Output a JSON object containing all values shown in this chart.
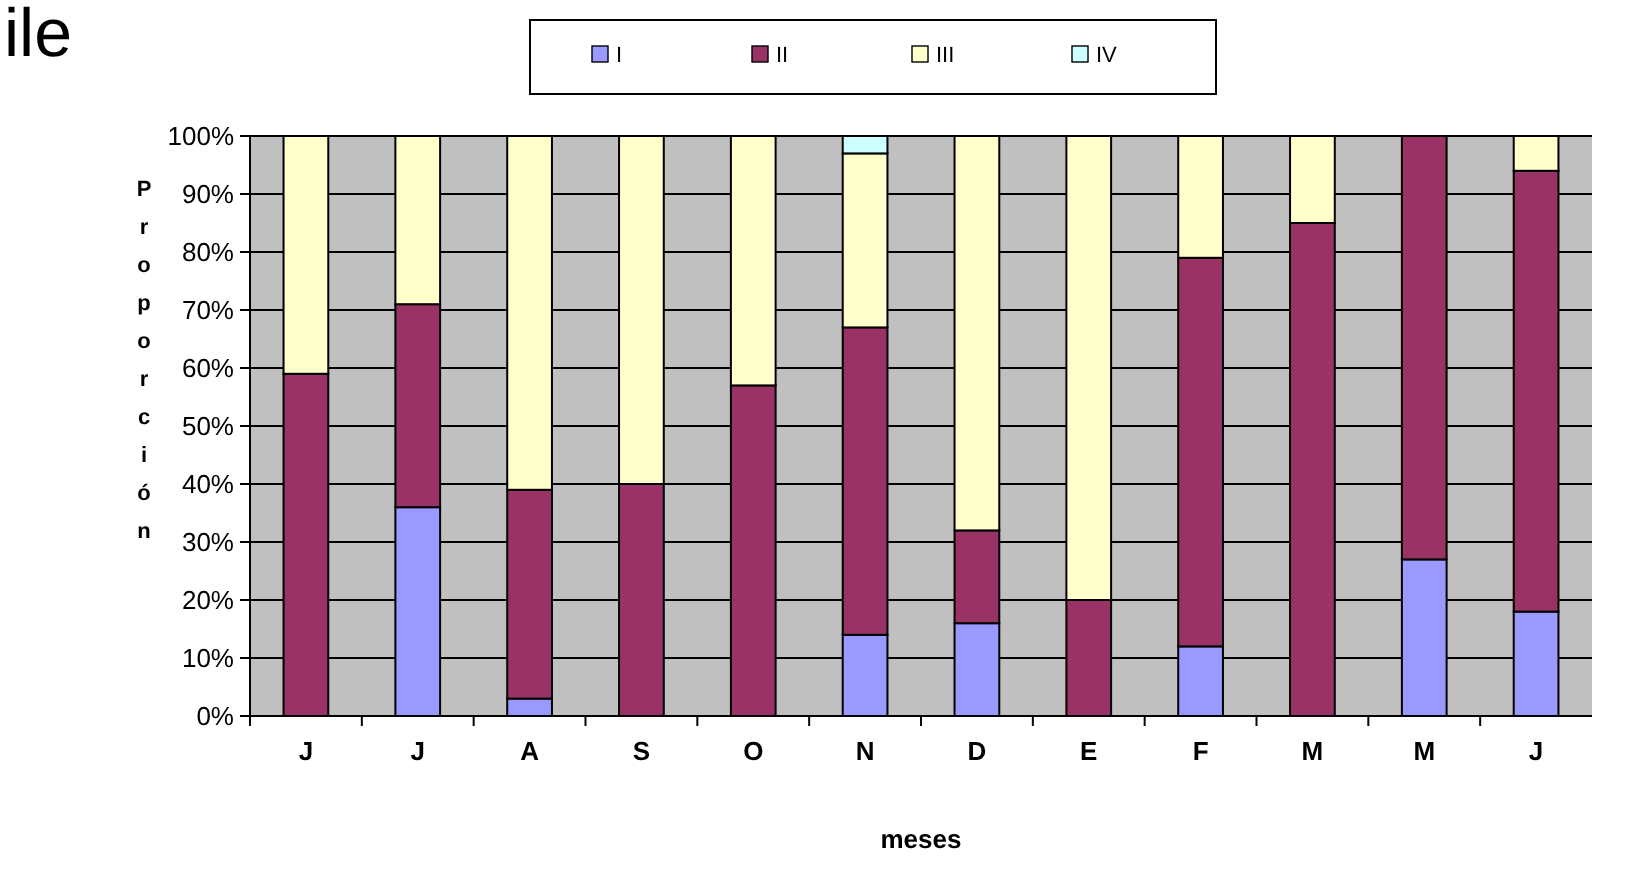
{
  "chart_data": {
    "type": "bar",
    "title": "ile",
    "xlabel": "meses",
    "ylabel": "Proporción",
    "categories": [
      "J",
      "J",
      "A",
      "S",
      "O",
      "N",
      "D",
      "E",
      "F",
      "M",
      "M",
      "J"
    ],
    "stacked": true,
    "series": [
      {
        "name": "I",
        "color": "#9999ff",
        "values": [
          0,
          36,
          3,
          0,
          0,
          14,
          16,
          0,
          12,
          0,
          27,
          18
        ]
      },
      {
        "name": "II",
        "color": "#993366",
        "values": [
          59,
          35,
          36,
          40,
          57,
          53,
          16,
          20,
          67,
          85,
          73,
          76
        ]
      },
      {
        "name": "III",
        "color": "#ffffcc",
        "values": [
          41,
          29,
          61,
          60,
          43,
          30,
          68,
          80,
          21,
          15,
          0,
          6
        ]
      },
      {
        "name": "IV",
        "color": "#ccffff",
        "values": [
          0,
          0,
          0,
          0,
          0,
          3,
          0,
          0,
          0,
          0,
          0,
          0
        ]
      }
    ],
    "ylim": [
      0,
      100
    ],
    "yticks": [
      {
        "value": 0,
        "label": "0%"
      },
      {
        "value": 10,
        "label": "10%"
      },
      {
        "value": 20,
        "label": "20%"
      },
      {
        "value": 30,
        "label": "30%"
      },
      {
        "value": 40,
        "label": "40%"
      },
      {
        "value": 50,
        "label": "50%"
      },
      {
        "value": 60,
        "label": "60%"
      },
      {
        "value": 70,
        "label": "70%"
      },
      {
        "value": 80,
        "label": "80%"
      },
      {
        "value": 90,
        "label": "90%"
      },
      {
        "value": 100,
        "label": "100%"
      }
    ],
    "grid": "y",
    "legend": "top"
  }
}
